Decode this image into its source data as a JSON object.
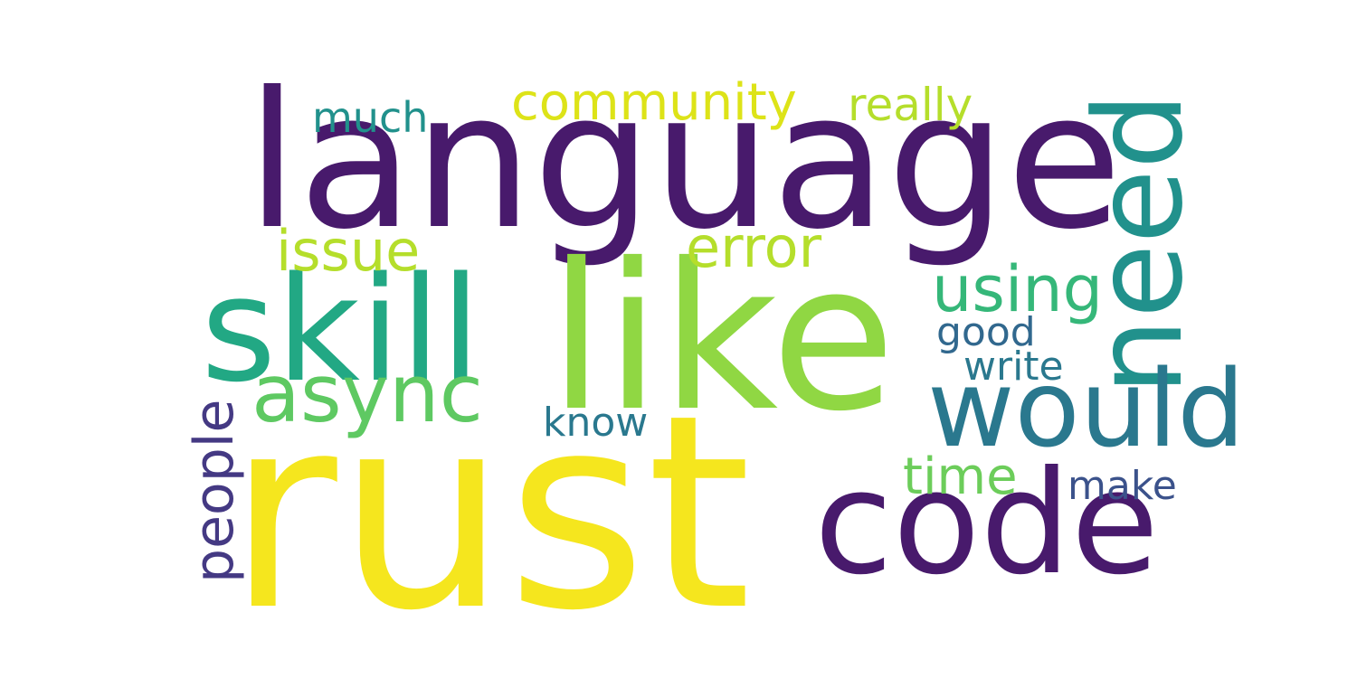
{
  "words": {
    "rust": {
      "text": "rust",
      "color": "#f5e61e"
    },
    "language": {
      "text": "language",
      "color": "#481a6c"
    },
    "like": {
      "text": "like",
      "color": "#90d743"
    },
    "code": {
      "text": "code",
      "color": "#481a6c"
    },
    "skill": {
      "text": "skill",
      "color": "#22a884"
    },
    "need": {
      "text": "need",
      "color": "#21918c"
    },
    "would": {
      "text": "would",
      "color": "#2a788e"
    },
    "async": {
      "text": "async",
      "color": "#5ec962"
    },
    "issue": {
      "text": "issue",
      "color": "#b5de2b"
    },
    "error": {
      "text": "error",
      "color": "#b5de2b"
    },
    "using": {
      "text": "using",
      "color": "#35b779"
    },
    "community": {
      "text": "community",
      "color": "#dde318"
    },
    "really": {
      "text": "really",
      "color": "#b5de2b"
    },
    "much": {
      "text": "much",
      "color": "#21918c"
    },
    "good": {
      "text": "good",
      "color": "#31688e"
    },
    "write": {
      "text": "write",
      "color": "#2a788e"
    },
    "know": {
      "text": "know",
      "color": "#2a788e"
    },
    "time": {
      "text": "time",
      "color": "#6ccd5a"
    },
    "make": {
      "text": "make",
      "color": "#3b528b"
    },
    "people": {
      "text": "people",
      "color": "#443983"
    }
  }
}
